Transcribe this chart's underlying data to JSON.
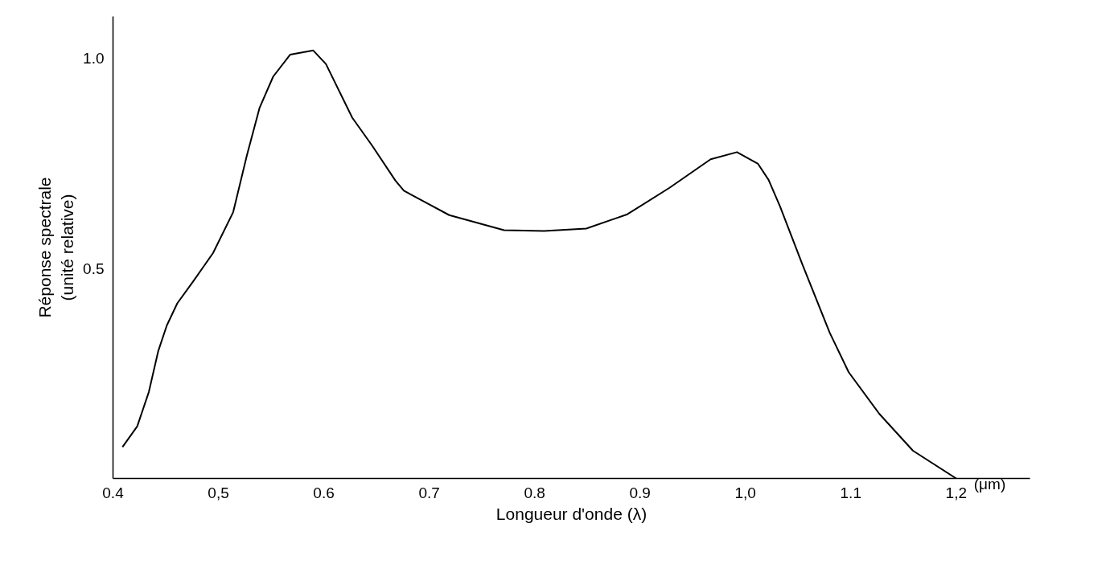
{
  "chart_data": {
    "type": "line",
    "xlabel": "Longueur d'onde (λ)",
    "ylabel": "Réponse spectrale\n(unité relative)",
    "annotations": [
      "(μm)"
    ],
    "x": [
      0.409,
      0.423,
      0.434,
      0.443,
      0.451,
      0.461,
      0.476,
      0.495,
      0.514,
      0.527,
      0.539,
      0.552,
      0.568,
      0.59,
      0.602,
      0.627,
      0.646,
      0.668,
      0.676,
      0.719,
      0.771,
      0.809,
      0.849,
      0.888,
      0.928,
      0.967,
      0.992,
      1.012,
      1.022,
      1.033,
      1.054,
      1.08,
      1.098,
      1.127,
      1.159,
      1.2
    ],
    "series": [
      {
        "color": "#000000",
        "values": [
          0.075,
          0.124,
          0.206,
          0.304,
          0.364,
          0.417,
          0.469,
          0.537,
          0.634,
          0.769,
          0.882,
          0.957,
          1.009,
          1.019,
          0.987,
          0.859,
          0.792,
          0.709,
          0.685,
          0.627,
          0.591,
          0.589,
          0.595,
          0.629,
          0.692,
          0.76,
          0.777,
          0.749,
          0.711,
          0.647,
          0.51,
          0.347,
          0.253,
          0.154,
          0.066,
          0.0
        ]
      }
    ],
    "xlim": [
      0.4,
      1.27
    ],
    "ylim": [
      0,
      1.1
    ],
    "xticks": [
      0.4,
      {
        "value": 0.5,
        "label": "0,5"
      },
      0.6,
      0.7,
      0.8,
      0.9,
      {
        "value": 1.0,
        "label": "1,0"
      },
      1.1,
      {
        "value": 1.2,
        "label": "1,2"
      }
    ],
    "yticks": [
      0.5,
      {
        "value": 1.0,
        "label": "1.0"
      }
    ],
    "grid": false,
    "marker": "none",
    "line_style": "solid"
  }
}
